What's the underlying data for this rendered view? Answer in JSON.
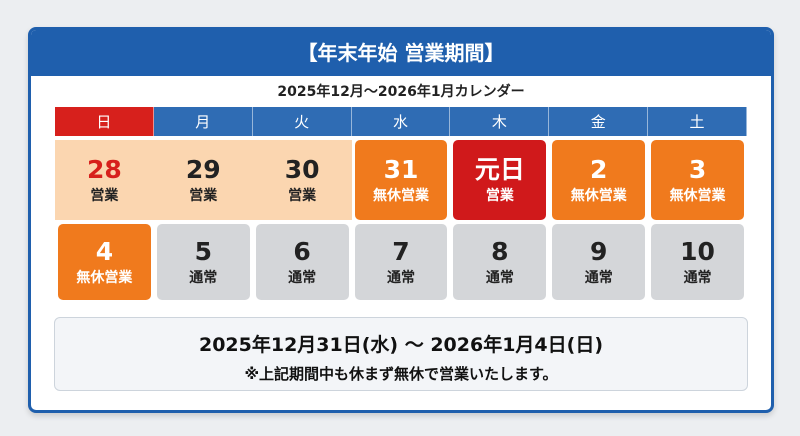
{
  "header": {
    "title": "【年末年始 営業期間】"
  },
  "calendar": {
    "subtitle": "2025年12月〜2026年1月カレンダー",
    "weekdays": [
      {
        "label": "日",
        "bg": "#d7201c"
      },
      {
        "label": "月",
        "bg": "#2f6cb4"
      },
      {
        "label": "火",
        "bg": "#2f6cb4"
      },
      {
        "label": "水",
        "bg": "#2f6cb4"
      },
      {
        "label": "木",
        "bg": "#2f6cb4"
      },
      {
        "label": "金",
        "bg": "#2f6cb4"
      },
      {
        "label": "土",
        "bg": "#2f6cb4"
      }
    ],
    "weeks": [
      [
        {
          "date": "28",
          "status": "営業",
          "bg": "#fbd6b0",
          "fg": "#d7201c",
          "status_fg": "#222222"
        },
        {
          "date": "29",
          "status": "営業",
          "bg": "#fbd6b0",
          "fg": "#222222",
          "status_fg": "#222222"
        },
        {
          "date": "30",
          "status": "営業",
          "bg": "#fbd6b0",
          "fg": "#222222",
          "status_fg": "#222222"
        },
        {
          "date": "31",
          "status": "無休営業",
          "bg": "#f07a1d",
          "fg": "#ffffff",
          "status_fg": "#ffffff"
        },
        {
          "date": "元日",
          "status": "営業",
          "bg": "#d0191b",
          "fg": "#ffffff",
          "status_fg": "#ffffff"
        },
        {
          "date": "2",
          "status": "無休営業",
          "bg": "#f07a1d",
          "fg": "#ffffff",
          "status_fg": "#ffffff"
        },
        {
          "date": "3",
          "status": "無休営業",
          "bg": "#f07a1d",
          "fg": "#ffffff",
          "status_fg": "#ffffff"
        }
      ],
      [
        {
          "date": "4",
          "status": "無休営業",
          "bg": "#f07a1d",
          "fg": "#ffffff",
          "status_fg": "#ffffff"
        },
        {
          "date": "5",
          "status": "通常",
          "bg": "#d4d6d9",
          "fg": "#222222",
          "status_fg": "#222222"
        },
        {
          "date": "6",
          "status": "通常",
          "bg": "#d4d6d9",
          "fg": "#222222",
          "status_fg": "#222222"
        },
        {
          "date": "7",
          "status": "通常",
          "bg": "#d4d6d9",
          "fg": "#222222",
          "status_fg": "#222222"
        },
        {
          "date": "8",
          "status": "通常",
          "bg": "#d4d6d9",
          "fg": "#222222",
          "status_fg": "#222222"
        },
        {
          "date": "9",
          "status": "通常",
          "bg": "#d4d6d9",
          "fg": "#222222",
          "status_fg": "#222222"
        },
        {
          "date": "10",
          "status": "通常",
          "bg": "#d4d6d9",
          "fg": "#222222",
          "status_fg": "#222222"
        }
      ]
    ]
  },
  "notice": {
    "period": "2025年12月31日(水) 〜 2026年1月4日(日)",
    "message": "※上記期間中も休まず無休で営業いたします。"
  }
}
